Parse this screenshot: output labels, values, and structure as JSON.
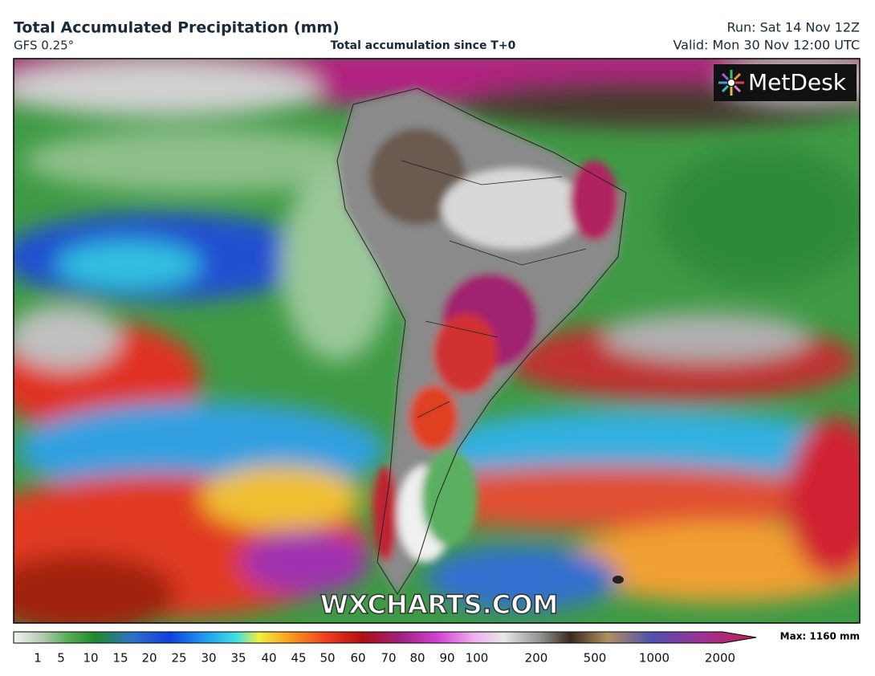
{
  "header": {
    "title": "Total Accumulated Precipitation (mm)",
    "model": "GFS 0.25°",
    "subtitle": "Total accumulation since T+0",
    "run": "Run: Sat 14 Nov 12Z",
    "valid": "Valid: Mon 30 Nov 12:00 UTC"
  },
  "logo": "MetDesk",
  "watermark": "WXCHARTS.COM",
  "colorbar": {
    "ticks": [
      1,
      5,
      10,
      15,
      20,
      25,
      30,
      35,
      40,
      45,
      50,
      60,
      70,
      80,
      90,
      100,
      200,
      500,
      1000,
      2000
    ],
    "max_label": "Max: 1160 mm"
  }
}
